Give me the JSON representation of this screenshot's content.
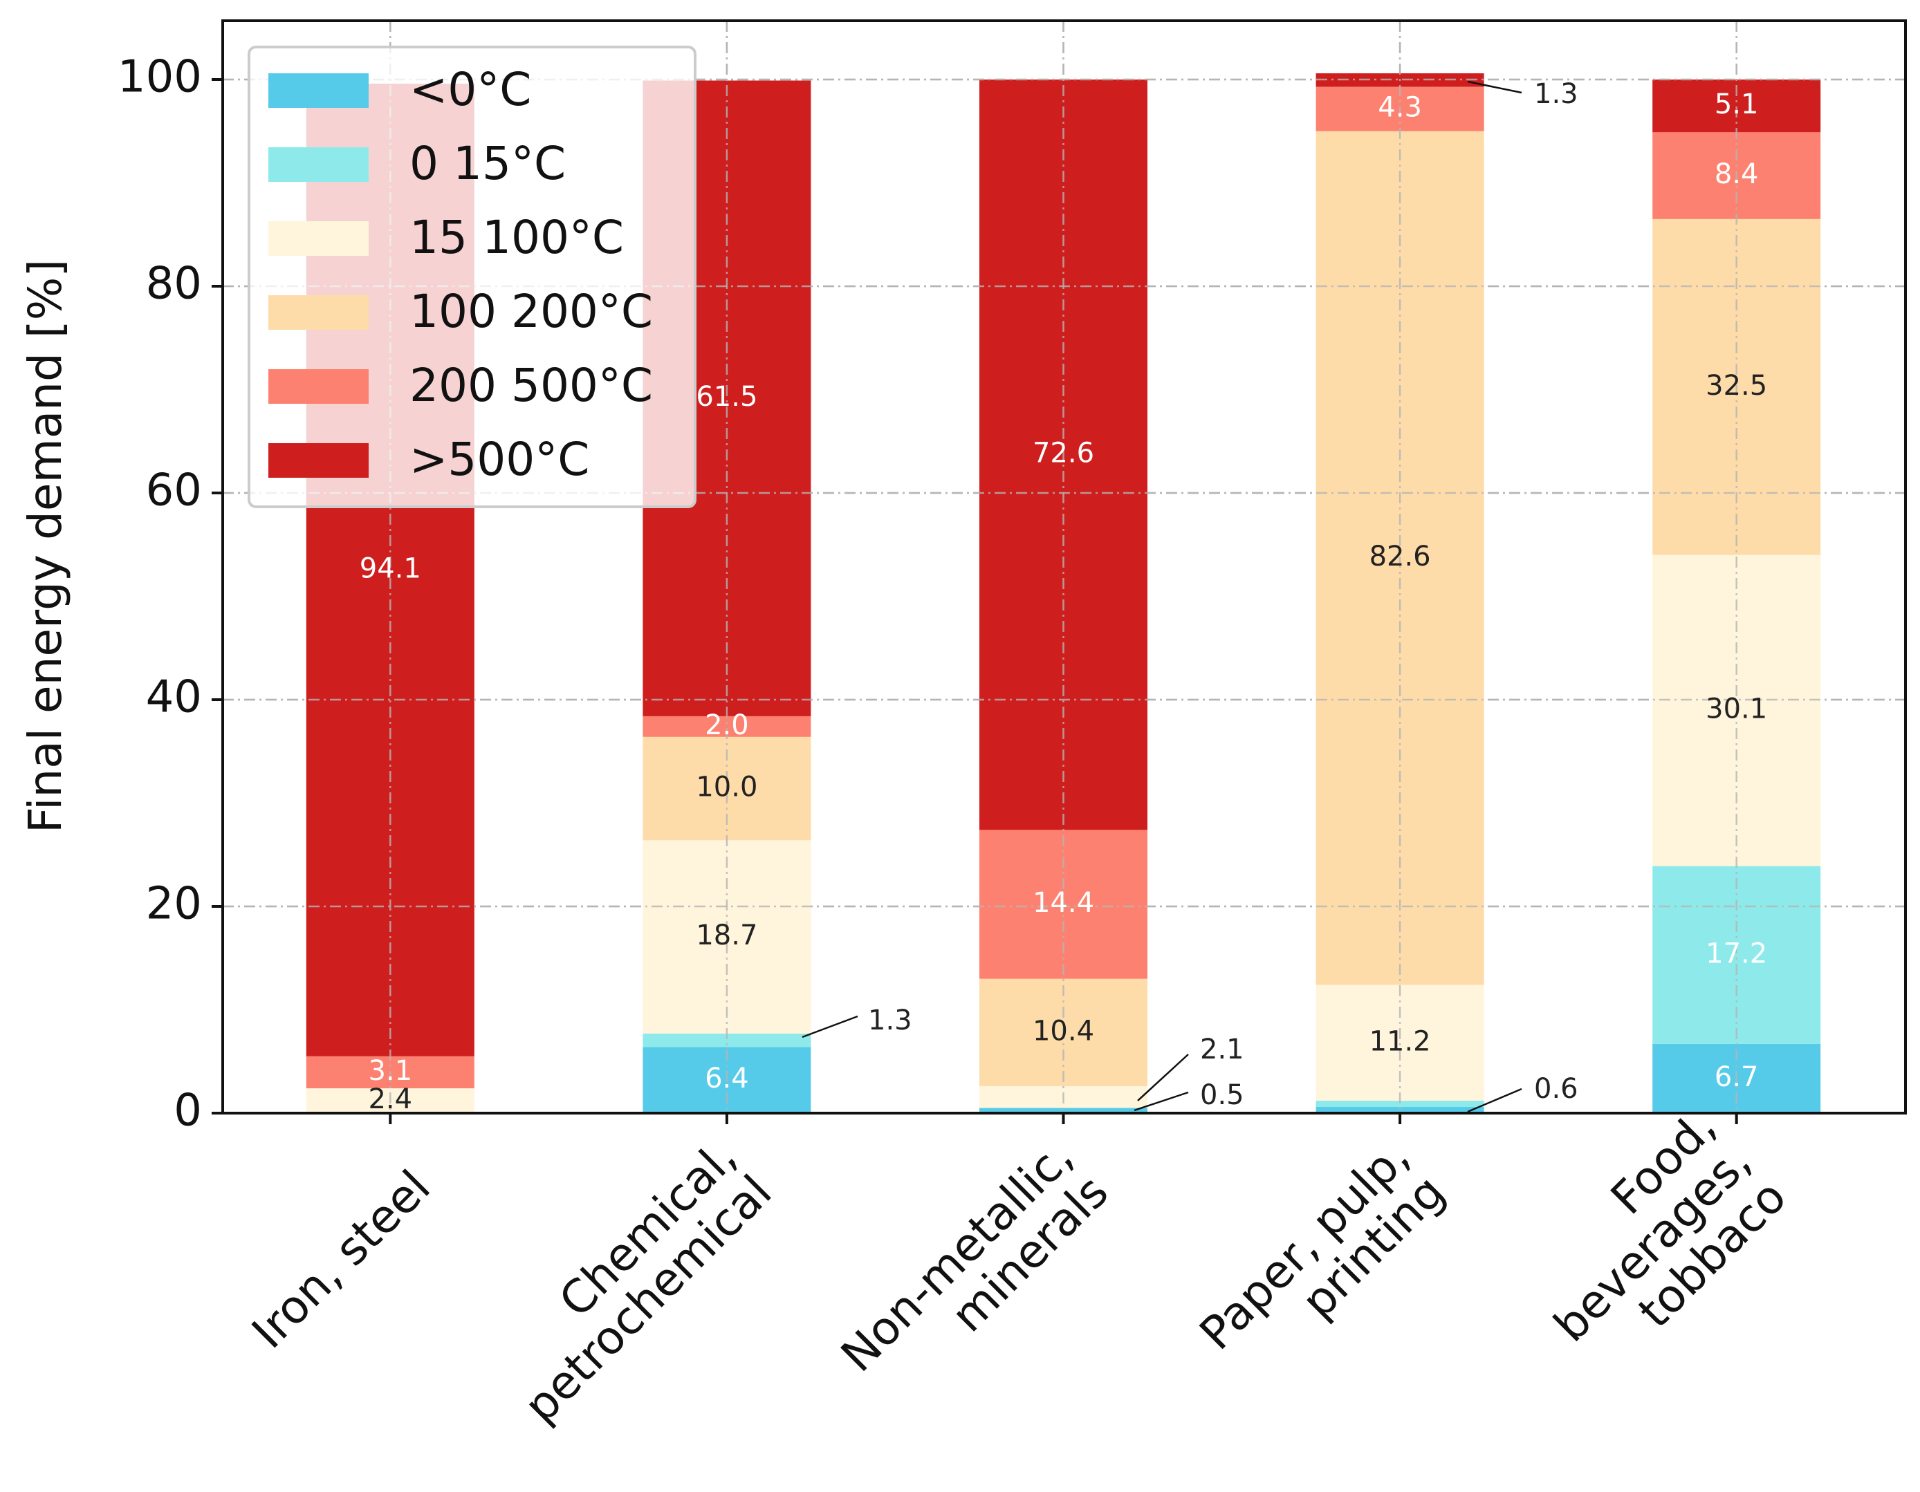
{
  "chart_data": {
    "type": "bar",
    "stacked": true,
    "title": "",
    "xlabel": "",
    "ylabel": "Final energy demand [%]",
    "ylim": [
      0,
      100
    ],
    "yticks": [
      0,
      20,
      40,
      60,
      80,
      100
    ],
    "grid": true,
    "legend_position": "top-left",
    "categories": [
      [
        "Iron, steel"
      ],
      [
        "Chemical,",
        "petrochemical"
      ],
      [
        "Non-metallic,",
        "minerals"
      ],
      [
        "Paper, pulp,",
        "printing"
      ],
      [
        "Food,",
        "beverages,",
        "tobbaco"
      ]
    ],
    "series": [
      {
        "name": "<0°C",
        "color": "#56cbe9",
        "values": [
          0,
          6.4,
          0.5,
          0.6,
          6.7
        ]
      },
      {
        "name": "0 15°C",
        "color": "#8eeaea",
        "values": [
          0,
          1.3,
          0,
          0.6,
          17.2
        ]
      },
      {
        "name": "15 100°C",
        "color": "#fff5dc",
        "values": [
          2.4,
          18.7,
          2.1,
          11.2,
          30.1
        ]
      },
      {
        "name": "100 200°C",
        "color": "#fedcaa",
        "values": [
          0,
          10.0,
          10.4,
          82.6,
          32.5
        ]
      },
      {
        "name": "200 500°C",
        "color": "#fd8170",
        "values": [
          3.1,
          2.0,
          14.4,
          4.3,
          8.4
        ]
      },
      {
        "name": ">500°C",
        "color": "#cf1e1e",
        "values": [
          94.1,
          61.5,
          72.6,
          1.3,
          5.1
        ]
      }
    ],
    "data_labels": [
      {
        "category": 0,
        "series": 2,
        "text": "2.4",
        "color": "#222222"
      },
      {
        "category": 0,
        "series": 4,
        "text": "3.1",
        "color": "#ffffff"
      },
      {
        "category": 0,
        "series": 5,
        "text": "94.1",
        "color": "#ffffff"
      },
      {
        "category": 1,
        "series": 0,
        "text": "6.4",
        "color": "#ffffff"
      },
      {
        "category": 1,
        "series": 1,
        "text": "1.3",
        "color": "#222222",
        "callout": true
      },
      {
        "category": 1,
        "series": 2,
        "text": "18.7",
        "color": "#222222"
      },
      {
        "category": 1,
        "series": 3,
        "text": "10.0",
        "color": "#222222"
      },
      {
        "category": 1,
        "series": 4,
        "text": "2.0",
        "color": "#ffffff"
      },
      {
        "category": 1,
        "series": 5,
        "text": "61.5",
        "color": "#ffffff"
      },
      {
        "category": 2,
        "series": 0,
        "text": "0.5",
        "color": "#222222",
        "callout": true
      },
      {
        "category": 2,
        "series": 2,
        "text": "2.1",
        "color": "#222222",
        "callout": true
      },
      {
        "category": 2,
        "series": 3,
        "text": "10.4",
        "color": "#222222"
      },
      {
        "category": 2,
        "series": 4,
        "text": "14.4",
        "color": "#ffffff"
      },
      {
        "category": 2,
        "series": 5,
        "text": "72.6",
        "color": "#ffffff"
      },
      {
        "category": 3,
        "series": 0,
        "text": "0.6",
        "color": "#222222",
        "callout": true
      },
      {
        "category": 3,
        "series": 2,
        "text": "11.2",
        "color": "#222222"
      },
      {
        "category": 3,
        "series": 3,
        "text": "82.6",
        "color": "#222222"
      },
      {
        "category": 3,
        "series": 4,
        "text": "4.3",
        "color": "#ffffff"
      },
      {
        "category": 3,
        "series": 5,
        "text": "1.3",
        "color": "#222222",
        "callout": true
      },
      {
        "category": 4,
        "series": 0,
        "text": "6.7",
        "color": "#ffffff"
      },
      {
        "category": 4,
        "series": 1,
        "text": "17.2",
        "color": "#ffffff"
      },
      {
        "category": 4,
        "series": 2,
        "text": "30.1",
        "color": "#222222"
      },
      {
        "category": 4,
        "series": 3,
        "text": "32.5",
        "color": "#222222"
      },
      {
        "category": 4,
        "series": 4,
        "text": "8.4",
        "color": "#ffffff"
      },
      {
        "category": 4,
        "series": 5,
        "text": "5.1",
        "color": "#ffffff"
      }
    ]
  }
}
